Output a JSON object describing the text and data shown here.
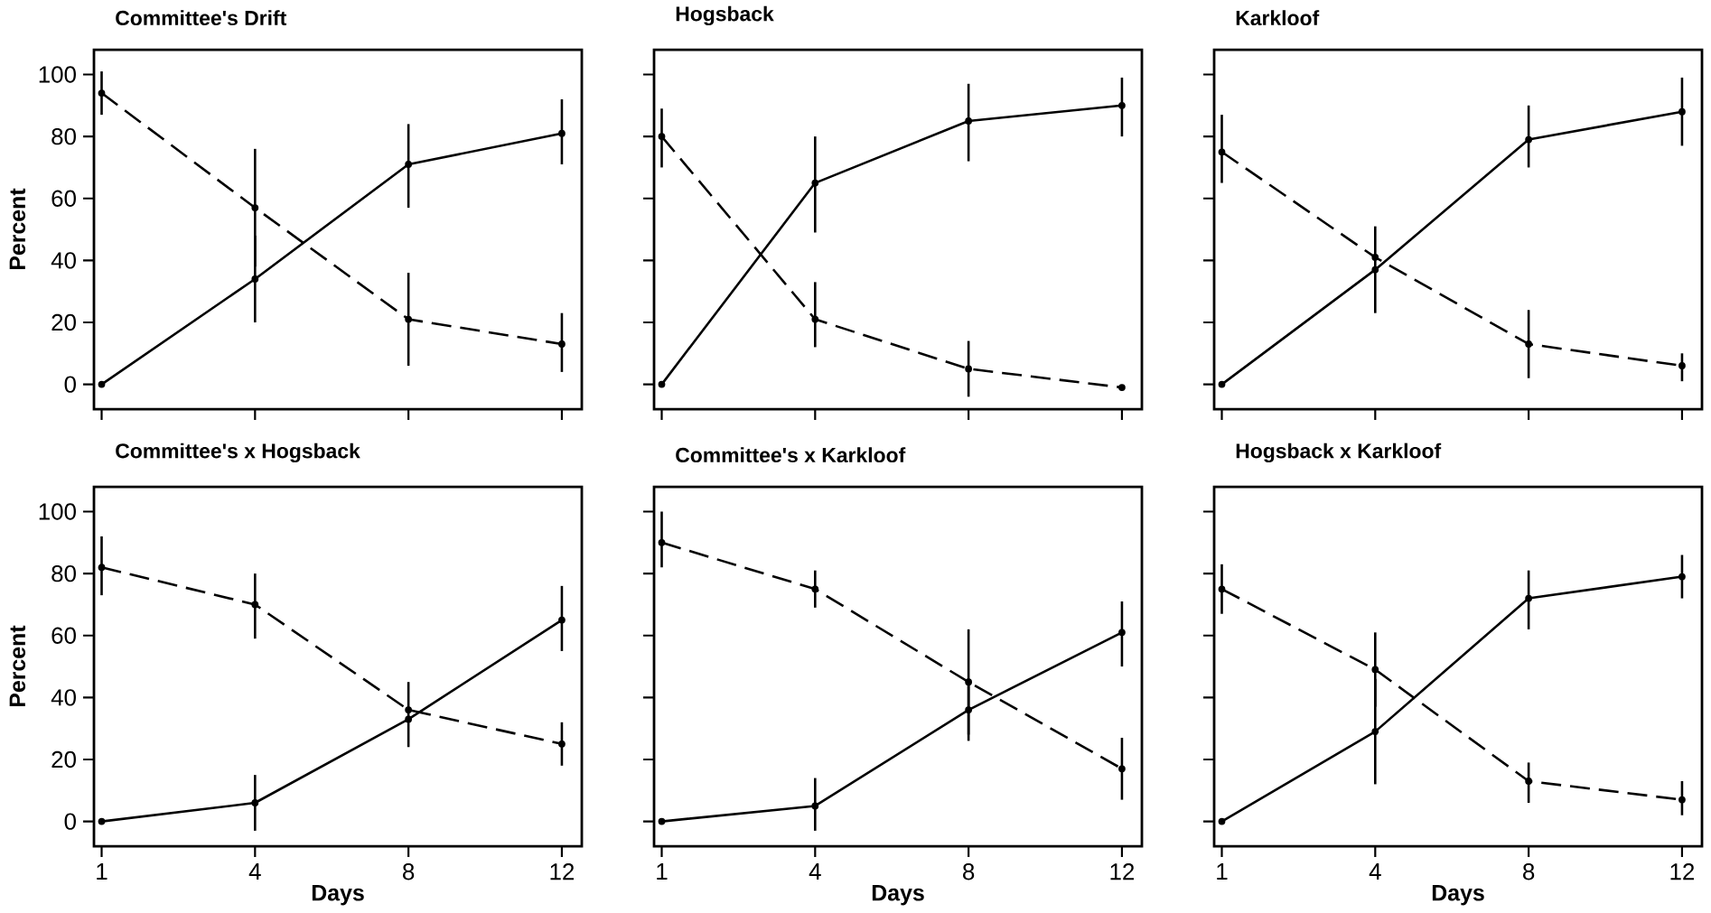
{
  "chart_data": [
    {
      "type": "line",
      "title": "Committee's Drift",
      "ylabel": "Percent",
      "categories": [
        "1",
        "4",
        "8",
        "12"
      ],
      "ylim": [
        -8,
        108
      ],
      "yticks": [
        0,
        20,
        40,
        60,
        80,
        100
      ],
      "tick_labels": "y",
      "marker": "circle",
      "series": [
        {
          "color": "#000000",
          "line_style": "solid",
          "values": [
            0,
            34,
            71,
            81
          ],
          "errors": [
            null,
            [
              20,
              48
            ],
            [
              57,
              84
            ],
            [
              71,
              92
            ]
          ]
        },
        {
          "color": "#000000",
          "line_style": "dashed",
          "values": [
            94,
            57,
            21,
            13
          ],
          "errors": [
            [
              87,
              101
            ],
            [
              38,
              76
            ],
            [
              6,
              36
            ],
            [
              4,
              23
            ]
          ]
        }
      ]
    },
    {
      "type": "line",
      "title": "Hogsback",
      "categories": [
        "1",
        "4",
        "8",
        "12"
      ],
      "ylim": [
        -8,
        108
      ],
      "yticks": [
        0,
        20,
        40,
        60,
        80,
        100
      ],
      "tick_labels": false,
      "marker": "circle",
      "series": [
        {
          "color": "#000000",
          "line_style": "solid",
          "values": [
            0,
            65,
            85,
            90
          ],
          "errors": [
            null,
            [
              49,
              80
            ],
            [
              72,
              97
            ],
            [
              80,
              99
            ]
          ]
        },
        {
          "color": "#000000",
          "line_style": "dashed",
          "values": [
            80,
            21,
            5,
            -1
          ],
          "errors": [
            [
              70,
              89
            ],
            [
              12,
              33
            ],
            [
              -4,
              14
            ],
            null
          ]
        }
      ]
    },
    {
      "type": "line",
      "title": "Karkloof",
      "categories": [
        "1",
        "4",
        "8",
        "12"
      ],
      "ylim": [
        -8,
        108
      ],
      "yticks": [
        0,
        20,
        40,
        60,
        80,
        100
      ],
      "tick_labels": false,
      "marker": "circle",
      "series": [
        {
          "color": "#000000",
          "line_style": "solid",
          "values": [
            0,
            37,
            79,
            88
          ],
          "errors": [
            null,
            [
              23,
              51
            ],
            [
              70,
              90
            ],
            [
              77,
              99
            ]
          ]
        },
        {
          "color": "#000000",
          "line_style": "dashed",
          "values": [
            75,
            41,
            13,
            6
          ],
          "errors": [
            [
              65,
              87
            ],
            null,
            [
              2,
              24
            ],
            [
              1,
              10
            ]
          ]
        }
      ]
    },
    {
      "type": "line",
      "title": "Committee's x Hogsback",
      "xlabel": "Days",
      "ylabel": "Percent",
      "categories": [
        "1",
        "4",
        "8",
        "12"
      ],
      "ylim": [
        -8,
        108
      ],
      "yticks": [
        0,
        20,
        40,
        60,
        80,
        100
      ],
      "marker": "circle",
      "series": [
        {
          "color": "#000000",
          "line_style": "solid",
          "values": [
            0,
            6,
            33,
            65
          ],
          "errors": [
            null,
            [
              -3,
              15
            ],
            [
              24,
              45
            ],
            [
              55,
              76
            ]
          ]
        },
        {
          "color": "#000000",
          "line_style": "dashed",
          "values": [
            82,
            70,
            36,
            25
          ],
          "errors": [
            [
              73,
              92
            ],
            [
              59,
              80
            ],
            null,
            [
              18,
              32
            ]
          ]
        }
      ]
    },
    {
      "type": "line",
      "title": "Committee's x Karkloof",
      "xlabel": "Days",
      "categories": [
        "1",
        "4",
        "8",
        "12"
      ],
      "ylim": [
        -8,
        108
      ],
      "yticks": [
        0,
        20,
        40,
        60,
        80,
        100
      ],
      "tick_labels": "x",
      "marker": "circle",
      "series": [
        {
          "color": "#000000",
          "line_style": "solid",
          "values": [
            0,
            5,
            36,
            61
          ],
          "errors": [
            null,
            [
              -3,
              14
            ],
            [
              26,
              46
            ],
            [
              50,
              71
            ]
          ]
        },
        {
          "color": "#000000",
          "line_style": "dashed",
          "values": [
            90,
            75,
            45,
            17
          ],
          "errors": [
            [
              82,
              100
            ],
            [
              69,
              81
            ],
            [
              28,
              62
            ],
            [
              7,
              27
            ]
          ]
        }
      ]
    },
    {
      "type": "line",
      "title": "Hogsback x Karkloof",
      "xlabel": "Days",
      "categories": [
        "1",
        "4",
        "8",
        "12"
      ],
      "ylim": [
        -8,
        108
      ],
      "yticks": [
        0,
        20,
        40,
        60,
        80,
        100
      ],
      "tick_labels": "x",
      "marker": "circle",
      "series": [
        {
          "color": "#000000",
          "line_style": "solid",
          "values": [
            0,
            29,
            72,
            79
          ],
          "errors": [
            null,
            [
              12,
              46
            ],
            [
              62,
              81
            ],
            [
              72,
              86
            ]
          ]
        },
        {
          "color": "#000000",
          "line_style": "dashed",
          "values": [
            75,
            49,
            13,
            7
          ],
          "errors": [
            [
              67,
              83
            ],
            [
              37,
              61
            ],
            [
              6,
              19
            ],
            [
              2,
              13
            ]
          ]
        }
      ]
    }
  ]
}
